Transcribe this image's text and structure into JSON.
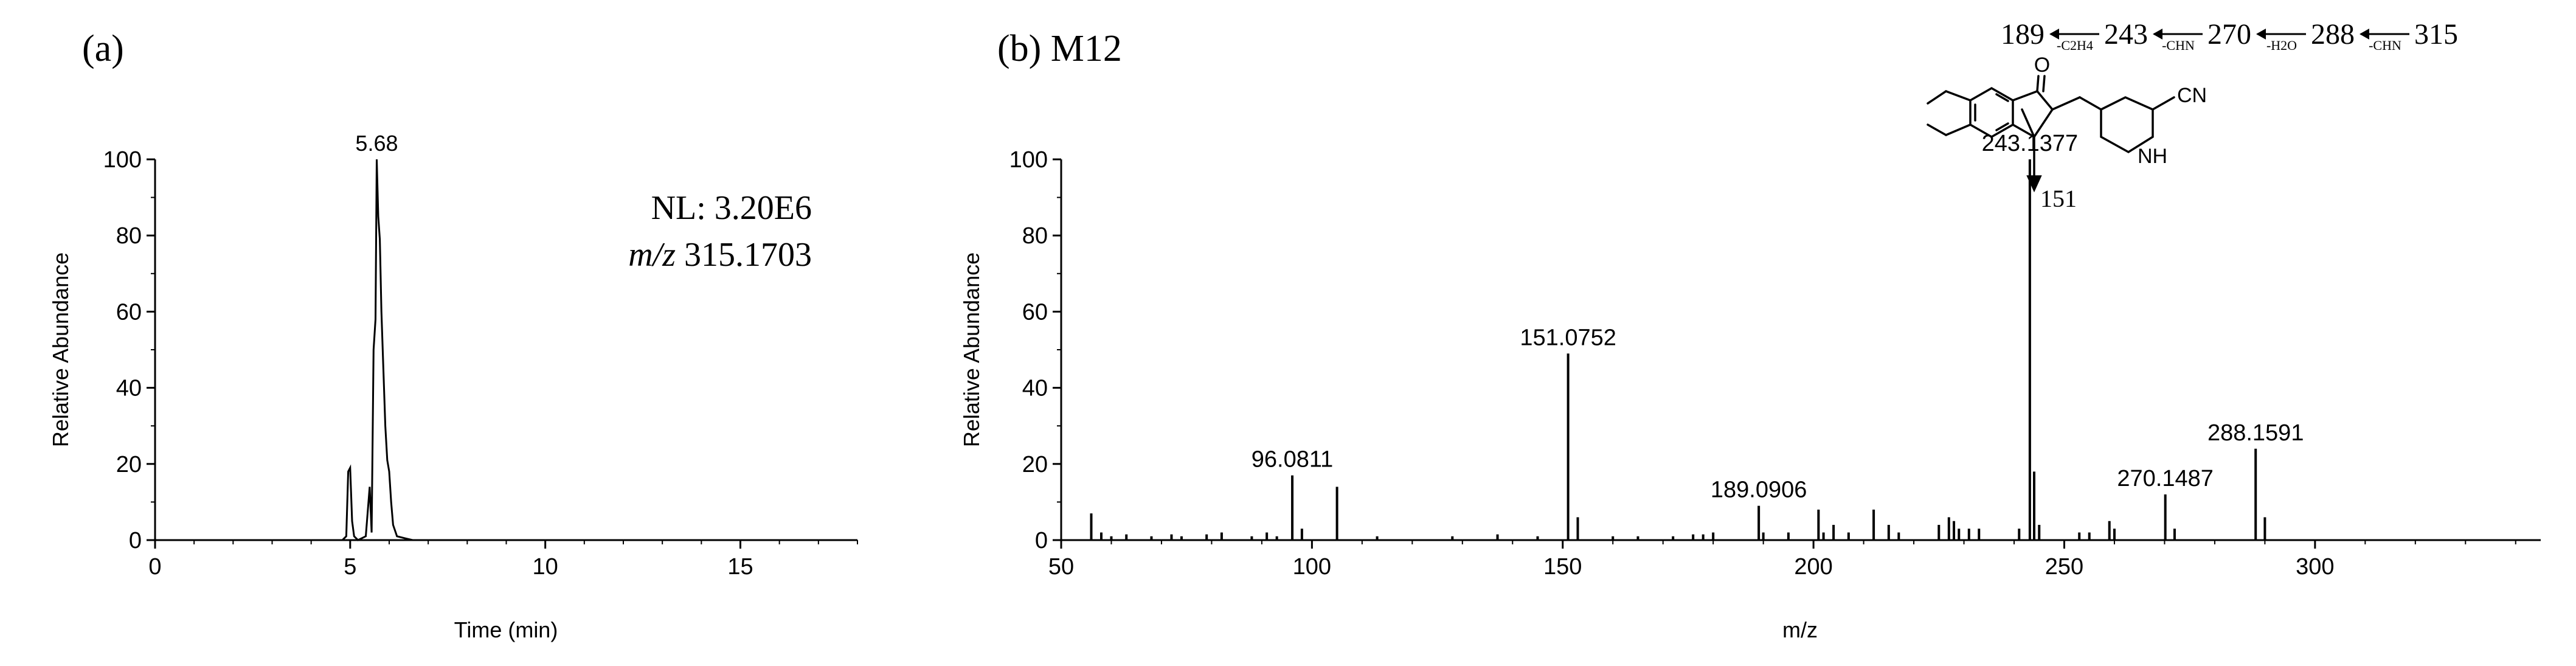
{
  "chart_data": [
    {
      "panel_label": "(a)",
      "type": "line",
      "xlabel": "Time (min)",
      "ylabel": "Relative Abundance",
      "xlim": [
        0,
        18
      ],
      "ylim": [
        0,
        100
      ],
      "x_ticks": [
        0,
        5,
        10,
        15
      ],
      "y_ticks": [
        0,
        20,
        40,
        60,
        80,
        100
      ],
      "grid": false,
      "peak_label": "5.68",
      "annotation_nl": "NL: 3.20E6",
      "annotation_mz_italic": "m/z",
      "annotation_mz_value": "315.1703",
      "x": [
        0,
        4.8,
        4.9,
        4.95,
        5.0,
        5.05,
        5.1,
        5.2,
        5.4,
        5.5,
        5.55,
        5.6,
        5.65,
        5.68,
        5.72,
        5.76,
        5.8,
        5.85,
        5.9,
        5.95,
        6.0,
        6.05,
        6.1,
        6.2,
        6.4,
        6.6,
        7.0,
        18
      ],
      "y": [
        0,
        0,
        1,
        18,
        19,
        5,
        1,
        0,
        1,
        14,
        2,
        50,
        58,
        100,
        85,
        79,
        60,
        45,
        30,
        21,
        18,
        10,
        4,
        1,
        0.5,
        0,
        0,
        0
      ]
    },
    {
      "panel_label": "(b) M12",
      "type": "bar",
      "xlabel": "m/z",
      "ylabel": "Relative Abundance",
      "xlim": [
        50,
        345
      ],
      "ylim": [
        0,
        100
      ],
      "x_ticks": [
        50,
        100,
        150,
        200,
        250,
        300
      ],
      "y_ticks": [
        0,
        20,
        40,
        60,
        80,
        100
      ],
      "grid": false,
      "x": [
        56,
        58,
        60,
        63,
        68,
        72,
        74,
        79,
        82,
        88,
        91,
        93,
        96.0811,
        98,
        105,
        113,
        128,
        137,
        145,
        151.0752,
        153,
        160,
        165,
        172,
        176,
        178,
        180,
        189.0906,
        190,
        195,
        201,
        202,
        204,
        207,
        212,
        215,
        217,
        225,
        227,
        228,
        229,
        231,
        233,
        241,
        243.1377,
        244,
        245,
        253,
        255,
        259,
        260,
        270.1487,
        272,
        288.1591,
        290
      ],
      "y": [
        7,
        2,
        1,
        1.5,
        1,
        1.5,
        1,
        1.5,
        2,
        1,
        2,
        1,
        17,
        3,
        14,
        1,
        1,
        1.5,
        1,
        49,
        6,
        1,
        1,
        1,
        1.5,
        1.5,
        2,
        9,
        2,
        2,
        8,
        2,
        4,
        2,
        8,
        4,
        2,
        4,
        6,
        5,
        3,
        3,
        3,
        3,
        100,
        18,
        4,
        2,
        2,
        5,
        3,
        12,
        3,
        24,
        6
      ],
      "peak_labels": [
        {
          "mz": 96.0811,
          "text": "96.0811"
        },
        {
          "mz": 151.0752,
          "text": "151.0752"
        },
        {
          "mz": 189.0906,
          "text": "189.0906"
        },
        {
          "mz": 243.1377,
          "text": "243.1377"
        },
        {
          "mz": 270.1487,
          "text": "270.1487"
        },
        {
          "mz": 288.1591,
          "text": "288.1591"
        }
      ],
      "fragmentation_pathway": [
        {
          "ion": "189"
        },
        {
          "loss": "-C2H4"
        },
        {
          "ion": "243"
        },
        {
          "loss": "-CHN"
        },
        {
          "ion": "270"
        },
        {
          "loss": "-H2O"
        },
        {
          "ion": "288"
        },
        {
          "loss": "-CHN"
        },
        {
          "ion": "315"
        }
      ],
      "structure_labels": {
        "nitrile": "CN",
        "amine": "NH",
        "fragment": "151",
        "carbonyl": "O"
      }
    }
  ]
}
